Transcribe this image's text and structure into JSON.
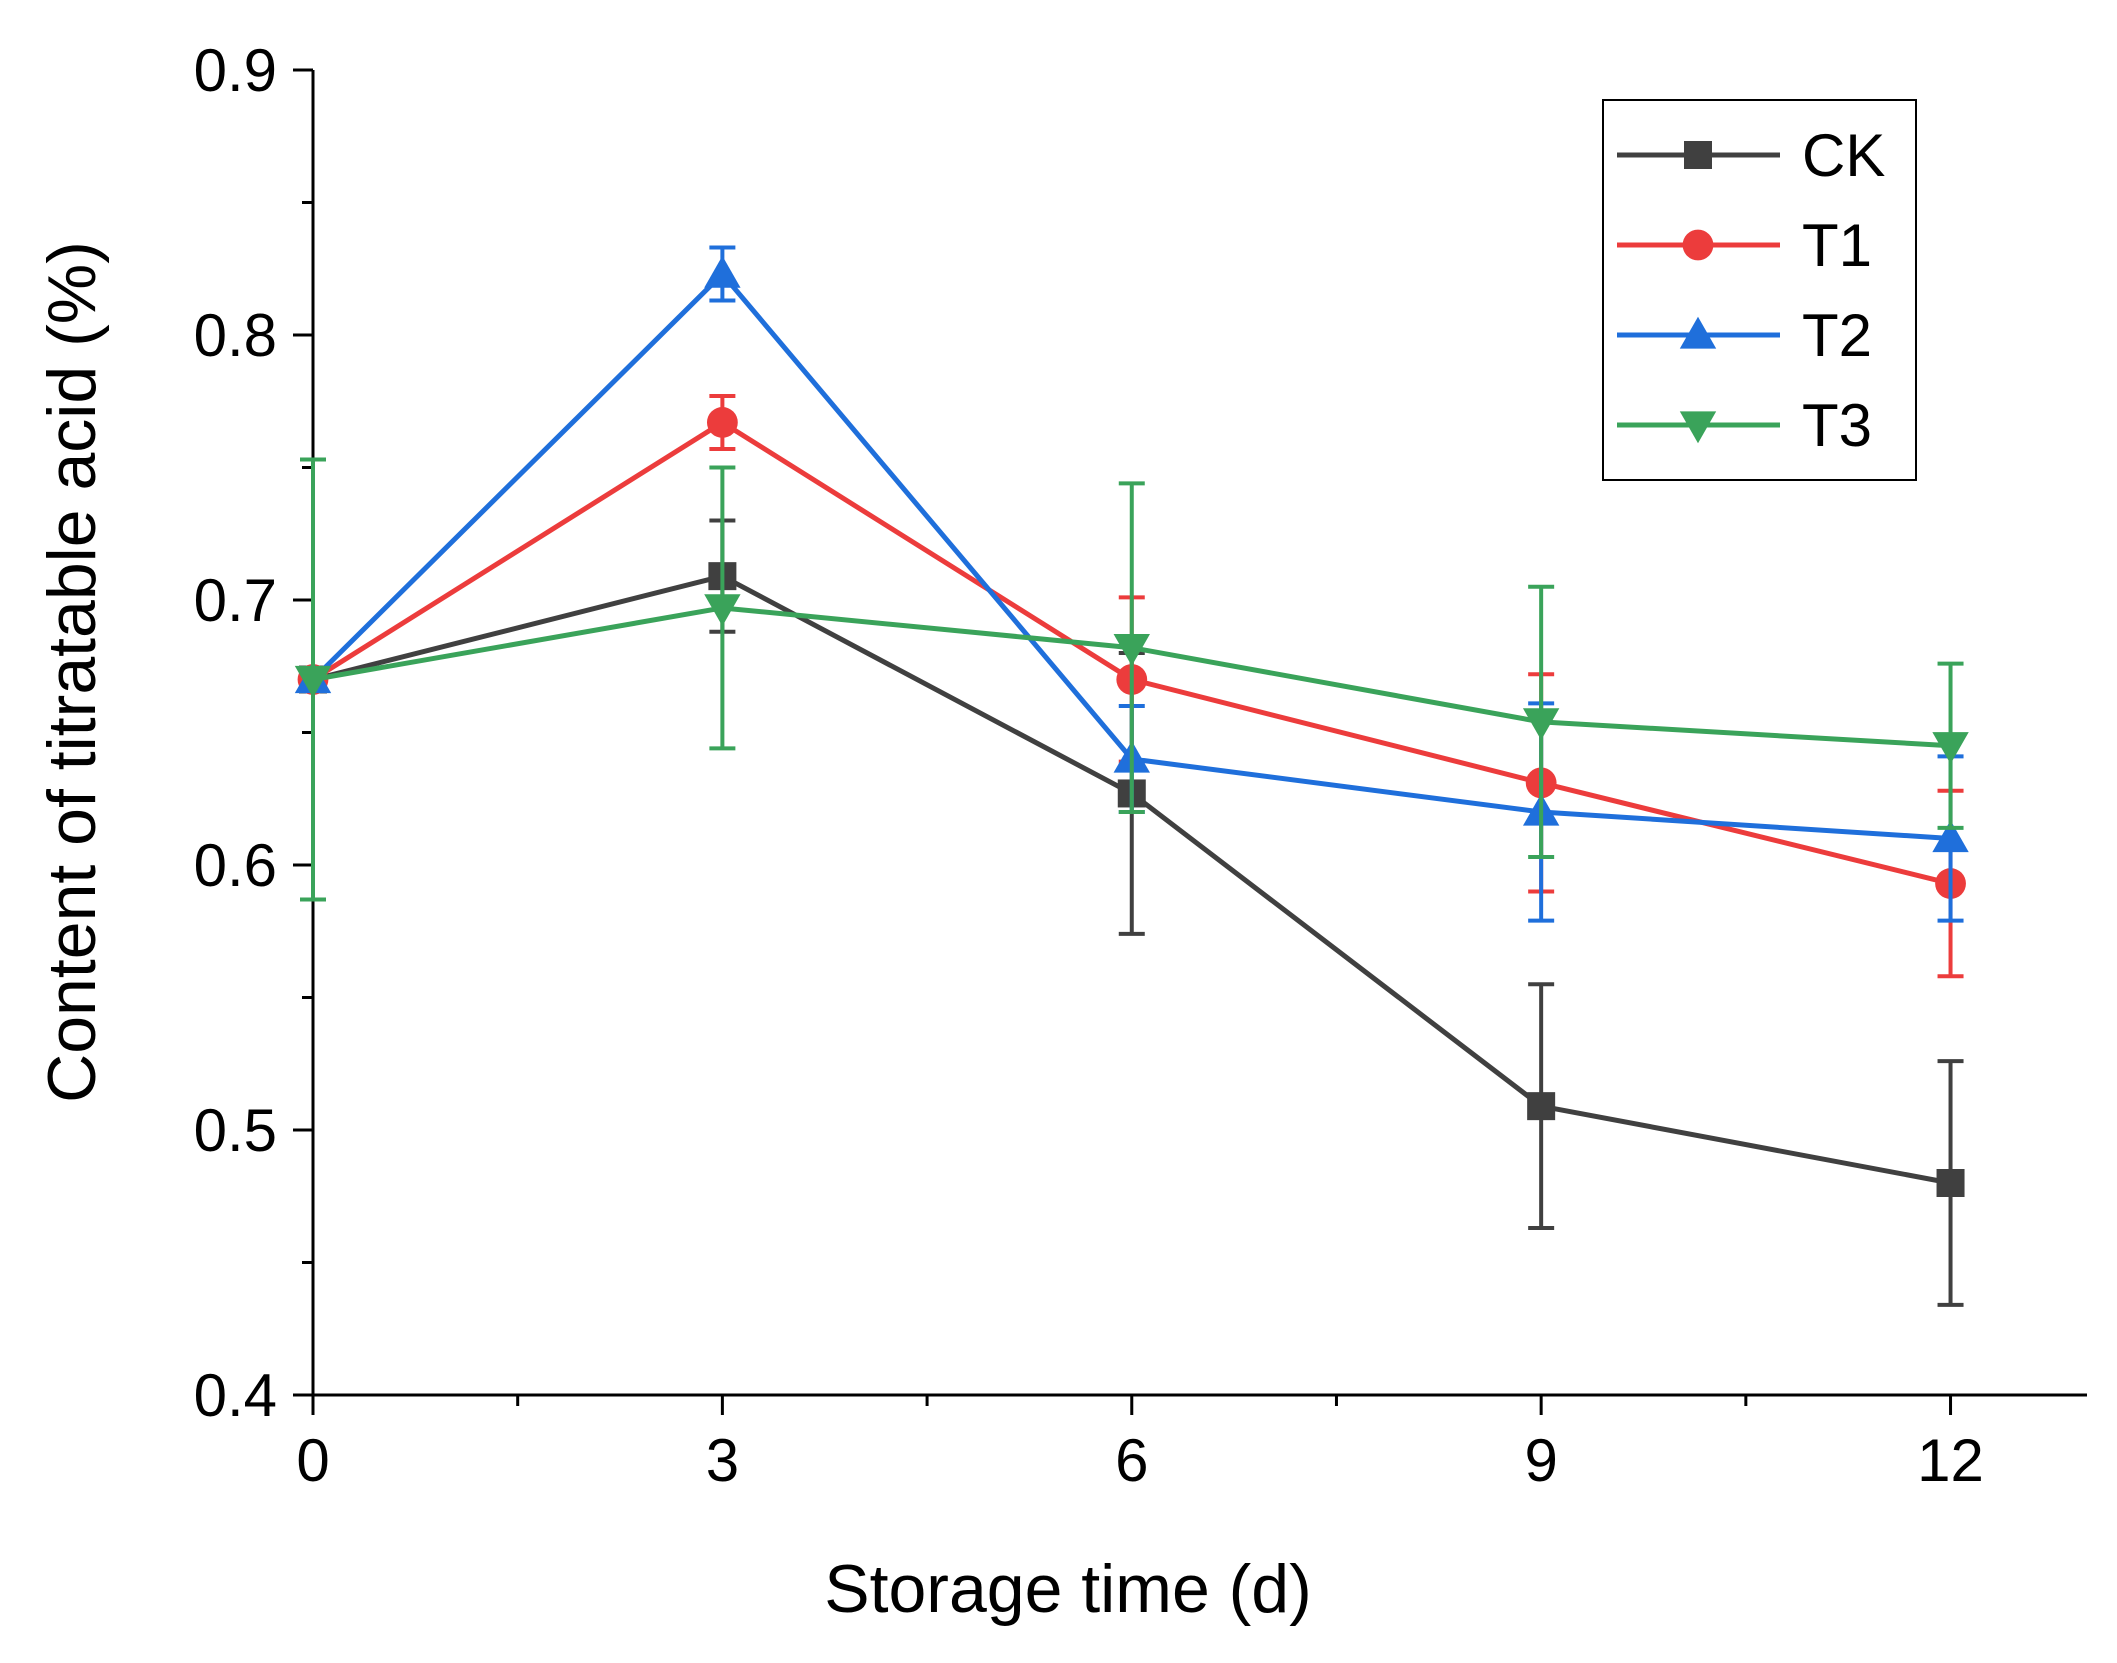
{
  "chart_data": {
    "type": "line",
    "title": "",
    "xlabel": "Storage time (d)",
    "ylabel": "Content of titratable acid (%)",
    "x": [
      0,
      3,
      6,
      9,
      12
    ],
    "xlim": [
      0,
      13
    ],
    "ylim": [
      0.4,
      0.9
    ],
    "x_ticks": [
      "0",
      "3",
      "6",
      "9",
      "12"
    ],
    "y_ticks": [
      "0.4",
      "0.5",
      "0.6",
      "0.7",
      "0.8",
      "0.9"
    ],
    "grid": false,
    "legend_position": "top-right",
    "series": [
      {
        "name": "CK",
        "color": "#404040",
        "marker": "square",
        "values": [
          0.67,
          0.709,
          0.627,
          0.509,
          0.48
        ],
        "errors": [
          0.0,
          0.021,
          0.053,
          0.046,
          0.046
        ]
      },
      {
        "name": "T1",
        "color": "#ec3c3c",
        "marker": "circle",
        "values": [
          0.67,
          0.767,
          0.67,
          0.631,
          0.593
        ],
        "errors": [
          0.0,
          0.01,
          0.031,
          0.041,
          0.035
        ]
      },
      {
        "name": "T2",
        "color": "#1f6fdb",
        "marker": "triangle-up",
        "values": [
          0.67,
          0.823,
          0.64,
          0.62,
          0.61
        ],
        "errors": [
          0.0,
          0.01,
          0.02,
          0.041,
          0.031
        ]
      },
      {
        "name": "T3",
        "color": "#3aa35a",
        "marker": "triangle-down",
        "values": [
          0.67,
          0.697,
          0.682,
          0.654,
          0.645
        ],
        "errors": [
          0.083,
          0.053,
          0.062,
          0.051,
          0.031
        ]
      }
    ]
  }
}
